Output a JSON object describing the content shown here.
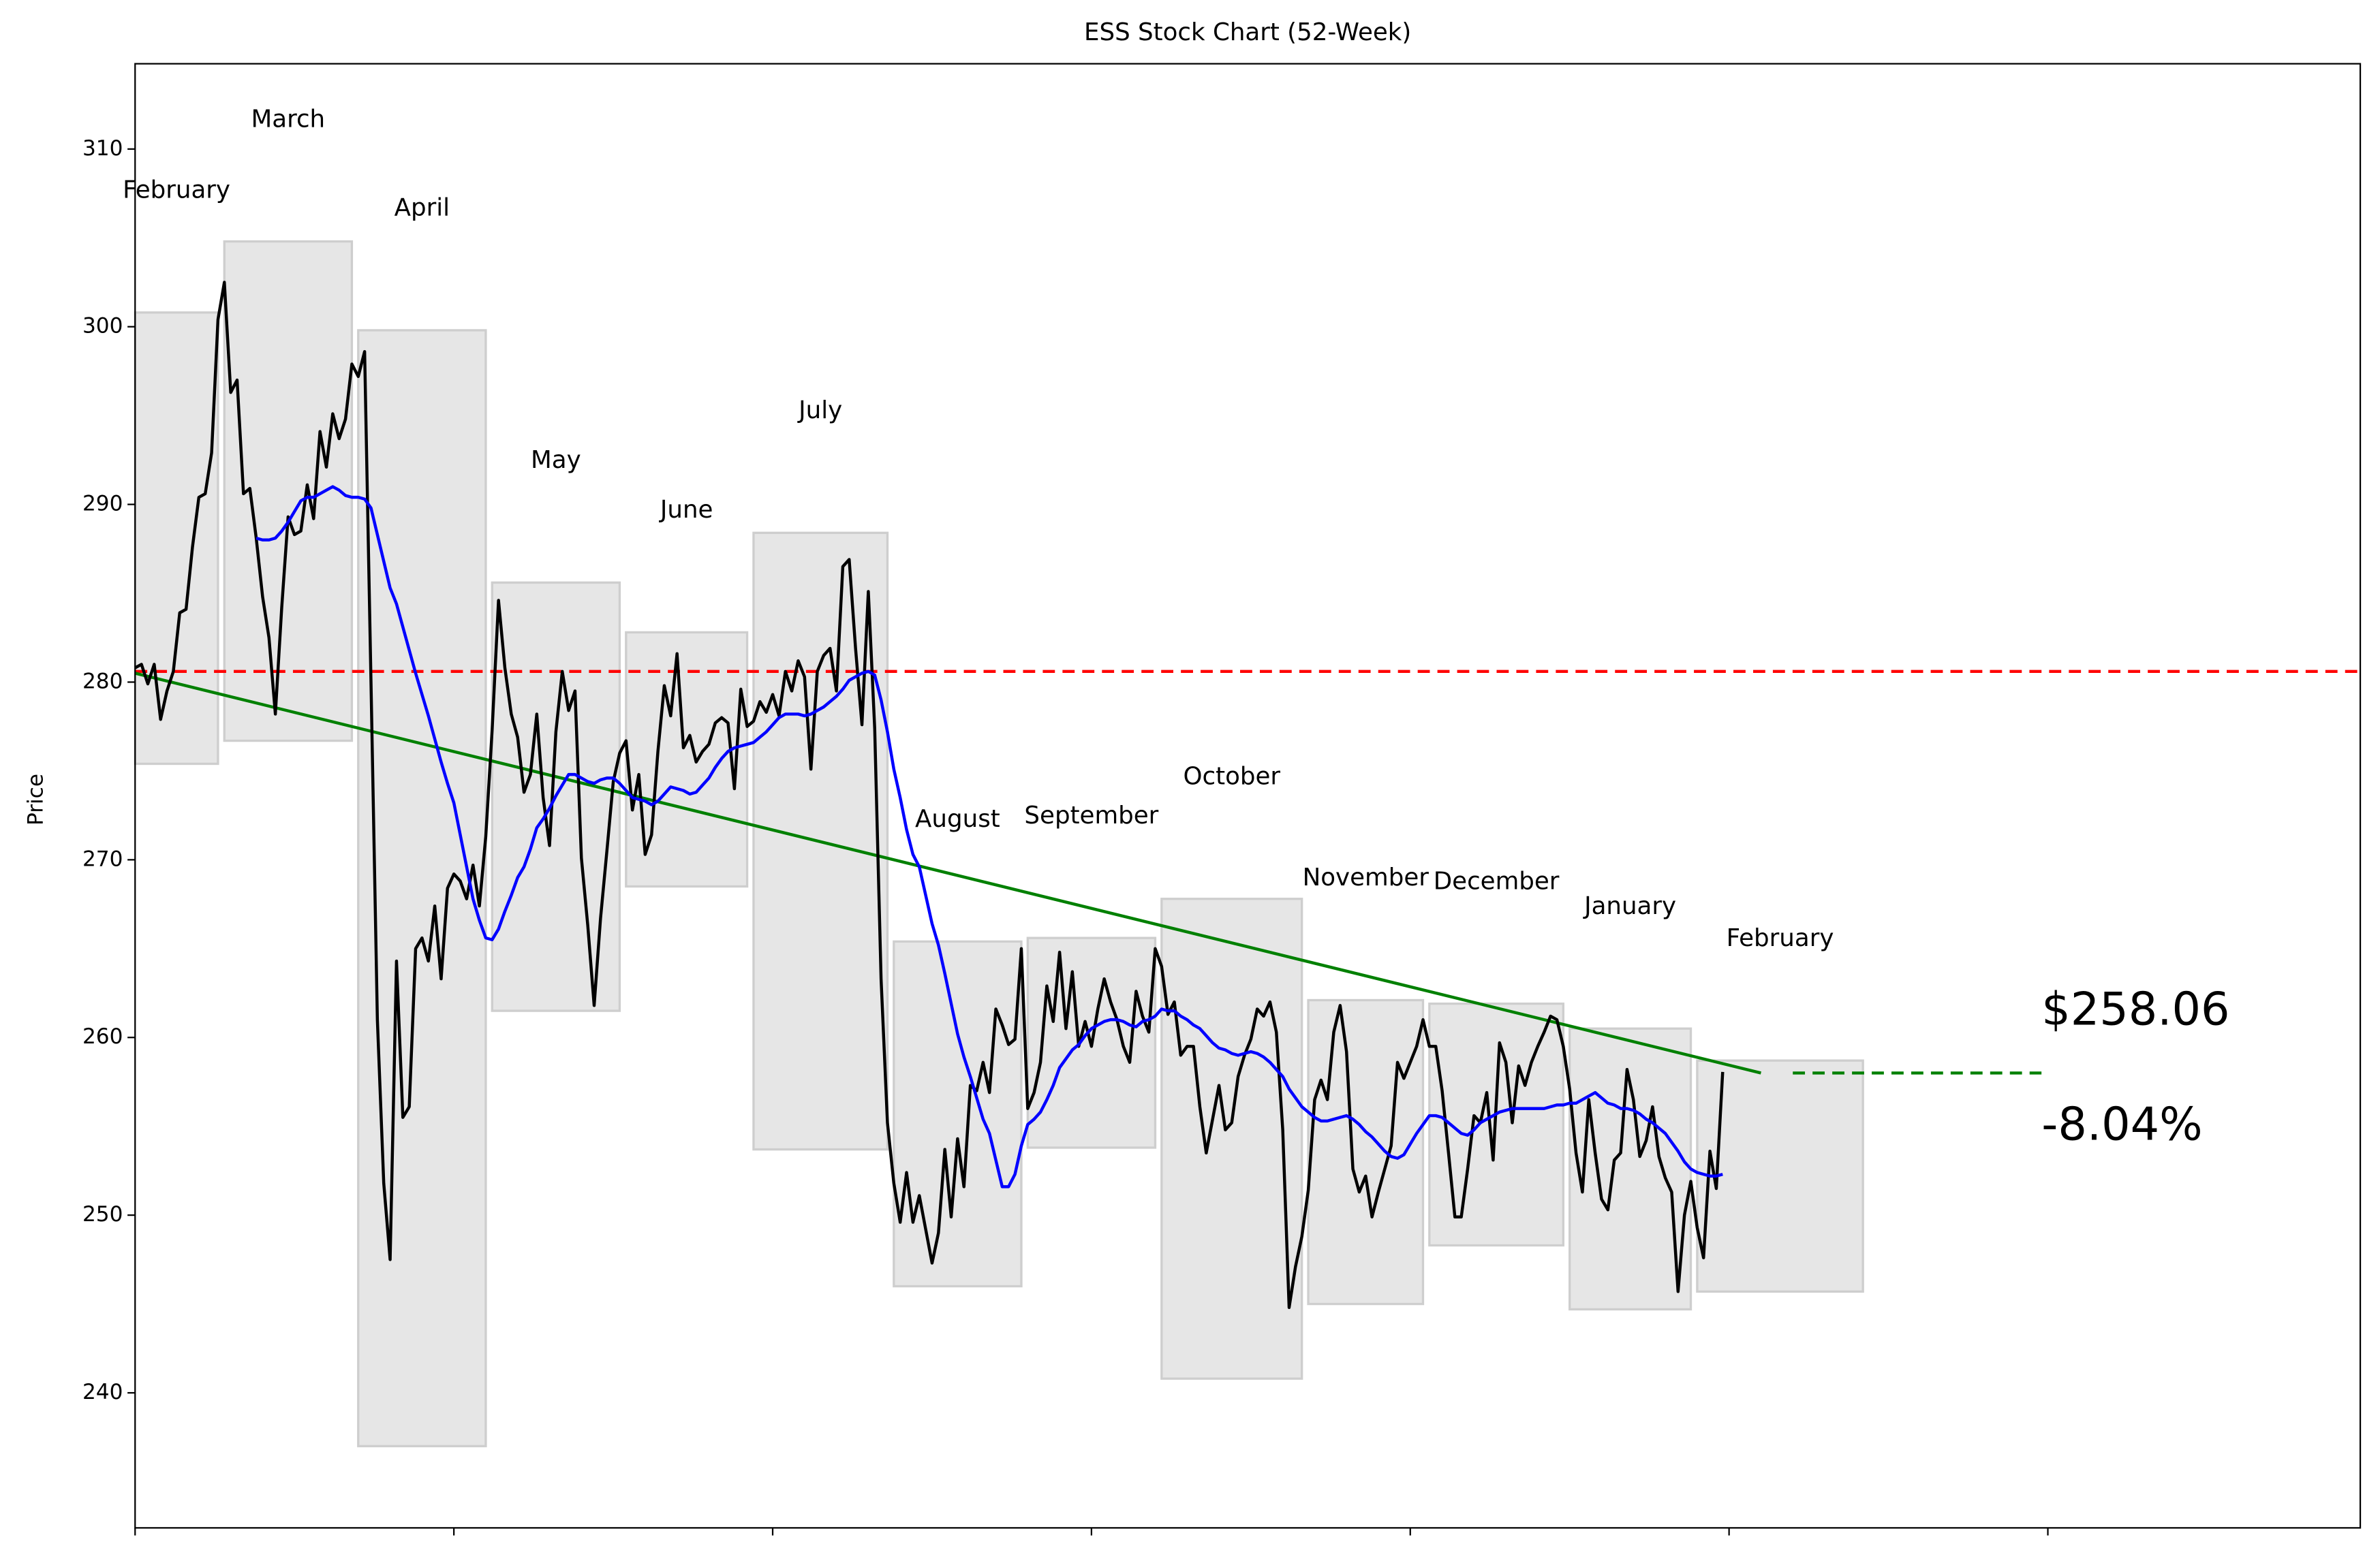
{
  "chart_data": {
    "type": "line",
    "title": "ESS Stock Chart (52-Week)",
    "ylabel": "Price",
    "x": [
      0,
      1,
      2,
      3,
      4,
      5,
      6,
      7,
      8,
      9,
      10,
      11,
      12,
      13,
      14,
      15,
      16,
      17,
      18,
      19,
      20,
      21,
      22,
      23,
      24,
      25,
      26,
      27,
      28,
      29,
      30,
      31,
      32,
      33,
      34,
      35,
      36,
      37,
      38,
      39,
      40,
      41,
      42,
      43,
      44,
      45,
      46,
      47,
      48,
      49,
      50,
      51,
      52,
      53,
      54,
      55,
      56,
      57,
      58,
      59,
      60,
      61,
      62,
      63,
      64,
      65,
      66,
      67,
      68,
      69,
      70,
      71,
      72,
      73,
      74,
      75,
      76,
      77,
      78,
      79,
      80,
      81,
      82,
      83,
      84,
      85,
      86,
      87,
      88,
      89,
      90,
      91,
      92,
      93,
      94,
      95,
      96,
      97,
      98,
      99,
      100,
      101,
      102,
      103,
      104,
      105,
      106,
      107,
      108,
      109,
      110,
      111,
      112,
      113,
      114,
      115,
      116,
      117,
      118,
      119,
      120,
      121,
      122,
      123,
      124,
      125,
      126,
      127,
      128,
      129,
      130,
      131,
      132,
      133,
      134,
      135,
      136,
      137,
      138,
      139,
      140,
      141,
      142,
      143,
      144,
      145,
      146,
      147,
      148,
      149,
      150,
      151,
      152,
      153,
      154,
      155,
      156,
      157,
      158,
      159,
      160,
      161,
      162,
      163,
      164,
      165,
      166,
      167,
      168,
      169,
      170,
      171,
      172,
      173,
      174,
      175,
      176,
      177,
      178,
      179,
      180,
      181,
      182,
      183,
      184,
      185,
      186,
      187,
      188,
      189,
      190,
      191,
      192,
      193,
      194,
      195,
      196,
      197,
      198,
      199,
      200,
      201,
      202,
      203,
      204,
      205,
      206,
      207,
      208,
      209,
      210,
      211,
      212,
      213,
      214,
      215,
      216,
      217,
      218,
      219,
      220,
      221,
      222,
      223,
      224,
      225,
      226,
      227,
      228,
      229,
      230,
      231,
      232,
      233,
      234,
      235,
      236,
      237,
      238,
      239,
      240,
      241,
      242,
      243,
      244,
      245,
      246,
      247,
      248,
      249
    ],
    "series": [
      {
        "color": "#000000",
        "values": [
          280.8,
          281.0,
          279.9,
          281.0,
          277.9,
          279.5,
          280.6,
          283.9,
          284.1,
          287.6,
          290.4,
          290.6,
          292.9,
          300.4,
          302.5,
          296.3,
          297.0,
          290.6,
          290.9,
          288.1,
          284.8,
          282.5,
          278.2,
          284.2,
          289.3,
          288.3,
          288.5,
          291.1,
          289.2,
          294.1,
          292.1,
          295.1,
          293.7,
          294.8,
          297.9,
          297.2,
          298.6,
          280.0,
          261.0,
          251.8,
          247.5,
          264.3,
          255.5,
          256.1,
          265.0,
          265.6,
          264.3,
          267.4,
          263.3,
          268.4,
          269.2,
          268.8,
          267.8,
          269.7,
          267.4,
          271.3,
          277.3,
          284.6,
          280.8,
          278.2,
          276.9,
          273.8,
          274.8,
          278.2,
          273.5,
          270.8,
          277.2,
          280.6,
          278.4,
          279.5,
          270.1,
          266.3,
          261.8,
          266.7,
          270.5,
          274.4,
          276.0,
          276.7,
          272.8,
          274.8,
          270.3,
          271.4,
          276.1,
          279.8,
          278.1,
          281.6,
          276.3,
          277.0,
          275.5,
          276.1,
          276.5,
          277.7,
          278.0,
          277.7,
          274.0,
          279.6,
          277.5,
          277.8,
          278.9,
          278.3,
          279.3,
          278.1,
          280.6,
          279.5,
          281.2,
          280.3,
          275.1,
          280.6,
          281.5,
          281.9,
          279.5,
          286.5,
          286.9,
          281.9,
          277.6,
          285.1,
          277.4,
          263.3,
          255.2,
          251.8,
          249.6,
          252.4,
          249.6,
          251.1,
          249.2,
          247.3,
          249.0,
          253.7,
          249.9,
          254.3,
          251.6,
          257.3,
          257.0,
          258.6,
          256.9,
          261.6,
          260.7,
          259.6,
          259.9,
          265.0,
          256.0,
          256.9,
          258.6,
          262.9,
          260.9,
          264.8,
          260.5,
          263.7,
          259.5,
          260.9,
          259.5,
          261.6,
          263.3,
          262.0,
          261.0,
          259.5,
          258.6,
          262.6,
          261.2,
          260.3,
          265.0,
          264.0,
          261.3,
          262.0,
          259.0,
          259.5,
          259.5,
          256.1,
          253.5,
          255.4,
          257.3,
          254.8,
          255.2,
          257.8,
          259.0,
          259.9,
          261.6,
          261.2,
          262.0,
          260.3,
          254.8,
          244.8,
          247.1,
          248.8,
          251.4,
          256.5,
          257.6,
          256.5,
          260.3,
          261.8,
          259.2,
          252.6,
          251.3,
          252.2,
          249.9,
          251.3,
          252.6,
          253.9,
          258.6,
          257.7,
          258.6,
          259.5,
          261.0,
          259.5,
          259.5,
          257.0,
          253.5,
          249.9,
          249.9,
          252.6,
          255.6,
          255.2,
          256.9,
          253.1,
          259.7,
          258.6,
          255.2,
          258.4,
          257.3,
          258.6,
          259.5,
          260.3,
          261.2,
          261.0,
          259.5,
          257.1,
          253.5,
          251.3,
          256.5,
          253.5,
          250.9,
          250.3,
          253.1,
          253.5,
          258.2,
          256.5,
          253.3,
          254.2,
          256.1,
          253.3,
          252.1,
          251.3,
          245.7,
          250.0,
          251.9,
          249.3,
          247.6,
          253.6,
          251.5,
          258.06
        ]
      },
      {
        "color": "#0000ff",
        "values": [
          null,
          null,
          null,
          null,
          null,
          null,
          null,
          null,
          null,
          null,
          null,
          null,
          null,
          null,
          null,
          null,
          null,
          null,
          null,
          288.1,
          288.0,
          288.0,
          288.1,
          288.5,
          289.0,
          289.6,
          290.2,
          290.4,
          290.4,
          290.6,
          290.8,
          291.0,
          290.8,
          290.5,
          290.4,
          290.4,
          290.3,
          289.8,
          288.3,
          286.8,
          285.3,
          284.4,
          283.1,
          281.8,
          280.5,
          279.3,
          278.1,
          276.8,
          275.5,
          274.3,
          273.2,
          271.4,
          269.6,
          267.8,
          266.6,
          265.6,
          265.5,
          266.1,
          267.1,
          268.0,
          269.0,
          269.6,
          270.6,
          271.8,
          272.3,
          272.9,
          273.6,
          274.2,
          274.8,
          274.8,
          274.6,
          274.4,
          274.3,
          274.5,
          274.6,
          274.6,
          274.3,
          273.9,
          273.5,
          273.4,
          273.3,
          273.1,
          273.3,
          273.7,
          274.1,
          274.0,
          273.9,
          273.7,
          273.8,
          274.2,
          274.6,
          275.2,
          275.7,
          276.1,
          276.3,
          276.4,
          276.5,
          276.6,
          276.9,
          277.2,
          277.6,
          278.0,
          278.2,
          278.2,
          278.2,
          278.1,
          278.2,
          278.4,
          278.6,
          278.9,
          279.2,
          279.6,
          280.1,
          280.3,
          280.5,
          280.6,
          280.4,
          279.0,
          277.2,
          275.1,
          273.5,
          271.7,
          270.3,
          269.6,
          268.0,
          266.4,
          265.2,
          263.6,
          261.9,
          260.2,
          258.9,
          257.8,
          256.6,
          255.4,
          254.6,
          253.1,
          251.6,
          251.6,
          252.3,
          253.9,
          255.1,
          255.4,
          255.8,
          256.5,
          257.3,
          258.3,
          258.8,
          259.3,
          259.6,
          260.1,
          260.5,
          260.7,
          260.9,
          261.0,
          261.0,
          260.9,
          260.7,
          260.6,
          260.9,
          261.0,
          261.2,
          261.6,
          261.5,
          261.5,
          261.2,
          261.0,
          260.7,
          260.5,
          260.1,
          259.7,
          259.4,
          259.3,
          259.1,
          259.0,
          259.1,
          259.2,
          259.1,
          258.9,
          258.6,
          258.2,
          257.8,
          257.1,
          256.6,
          256.1,
          255.8,
          255.5,
          255.3,
          255.3,
          255.4,
          255.5,
          255.6,
          255.4,
          255.1,
          254.7,
          254.4,
          254.0,
          253.6,
          253.3,
          253.2,
          253.4,
          254.0,
          254.6,
          255.1,
          255.6,
          255.6,
          255.5,
          255.2,
          254.9,
          254.6,
          254.5,
          254.8,
          255.2,
          255.4,
          255.6,
          255.8,
          255.9,
          256.0,
          256.0,
          256.0,
          256.0,
          256.0,
          256.0,
          256.1,
          256.2,
          256.2,
          256.3,
          256.3,
          256.5,
          256.7,
          256.9,
          256.6,
          256.3,
          256.2,
          256.0,
          256.0,
          255.9,
          255.7,
          255.4,
          255.2,
          254.9,
          254.6,
          254.1,
          253.6,
          253.0,
          252.6,
          252.4,
          252.3,
          252.2,
          252.2,
          252.3
        ]
      }
    ],
    "xlim": [
      0,
      349
    ],
    "ylim": [
      232.4,
      314.8
    ],
    "xticks": [
      0,
      50,
      100,
      150,
      200,
      250,
      300
    ],
    "yticks": [
      240,
      250,
      260,
      270,
      280,
      290,
      300,
      310
    ],
    "ranges": [
      {
        "label": "February",
        "x": [
          0,
          13
        ],
        "low": 275.4,
        "high": 300.8
      },
      {
        "label": "March",
        "x": [
          14,
          34
        ],
        "low": 276.7,
        "high": 304.8
      },
      {
        "label": "April",
        "x": [
          35,
          55
        ],
        "low": 237.0,
        "high": 299.8
      },
      {
        "label": "May",
        "x": [
          56,
          76
        ],
        "low": 261.5,
        "high": 285.6
      },
      {
        "label": "June",
        "x": [
          77,
          96
        ],
        "low": 268.5,
        "high": 282.8
      },
      {
        "label": "July",
        "x": [
          97,
          118
        ],
        "low": 253.7,
        "high": 288.4
      },
      {
        "label": "August",
        "x": [
          119,
          139
        ],
        "low": 246.0,
        "high": 265.4
      },
      {
        "label": "September",
        "x": [
          140,
          160
        ],
        "low": 253.8,
        "high": 265.6
      },
      {
        "label": "October",
        "x": [
          161,
          183
        ],
        "low": 240.8,
        "high": 267.8
      },
      {
        "label": "November",
        "x": [
          184,
          202
        ],
        "low": 245.0,
        "high": 262.1
      },
      {
        "label": "December",
        "x": [
          203,
          224
        ],
        "low": 248.3,
        "high": 261.9
      },
      {
        "label": "January",
        "x": [
          225,
          244
        ],
        "low": 244.7,
        "high": 260.5
      },
      {
        "label": "February",
        "x": [
          245,
          271
        ],
        "low": 245.7,
        "high": 258.7
      }
    ],
    "range_color": "#e5e5e5",
    "hlines": [
      {
        "value": 280.6,
        "color": "#ff0000",
        "dash": true
      }
    ],
    "lines": [
      {
        "x": [
          0,
          255
        ],
        "values": [
          280.5,
          258.0
        ],
        "color": "#008000",
        "dash": false
      },
      {
        "x": [
          260,
          299
        ],
        "values": [
          258.0,
          258.0
        ],
        "color": "#008000",
        "dash": true
      }
    ],
    "annotations": [
      {
        "text": "$258.06",
        "color": "#0000ff"
      },
      {
        "text": "-8.04%",
        "color": "#0000ff"
      }
    ]
  }
}
